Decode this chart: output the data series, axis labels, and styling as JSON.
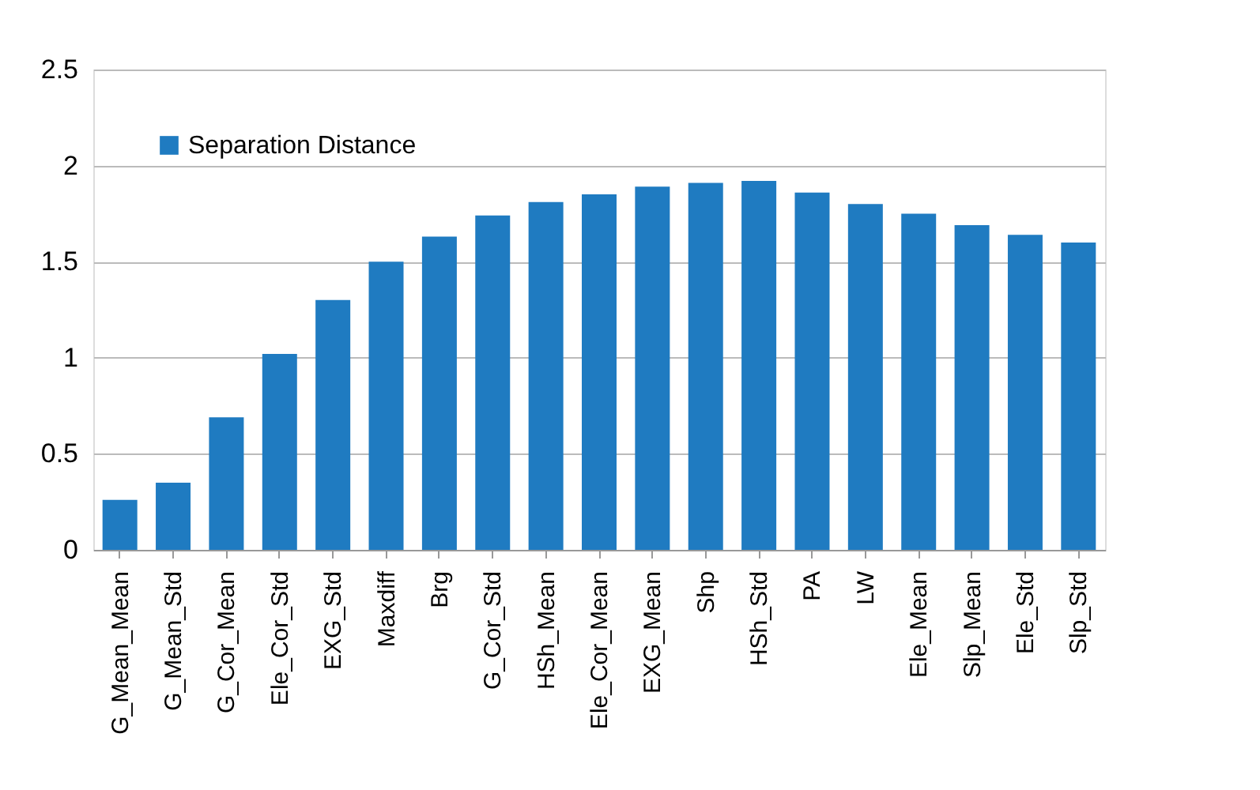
{
  "chart_data": {
    "type": "bar",
    "categories": [
      "G_Mean_Mean",
      "G_Mean_Std",
      "G_Cor_Mean",
      "Ele_Cor_Std",
      "EXG_Std",
      "Maxdiff",
      "Brg",
      "G_Cor_Std",
      "HSh_Mean",
      "Ele_Cor_Mean",
      "EXG_Mean",
      "Shp",
      "HSh_Std",
      "PA",
      "LW",
      "Ele_Mean",
      "Slp_Mean",
      "Ele_Std",
      "Slp_Std"
    ],
    "series": [
      {
        "name": "Separation Distance",
        "color": "#1f7bc1",
        "values": [
          0.26,
          0.35,
          0.69,
          1.02,
          1.3,
          1.5,
          1.63,
          1.74,
          1.81,
          1.85,
          1.89,
          1.91,
          1.92,
          1.86,
          1.8,
          1.75,
          1.69,
          1.64,
          1.6
        ]
      }
    ],
    "ylim": [
      0,
      2.5
    ],
    "yticks": [
      0,
      0.5,
      1,
      1.5,
      2,
      2.5
    ],
    "grid": "y",
    "legend": "top left"
  }
}
